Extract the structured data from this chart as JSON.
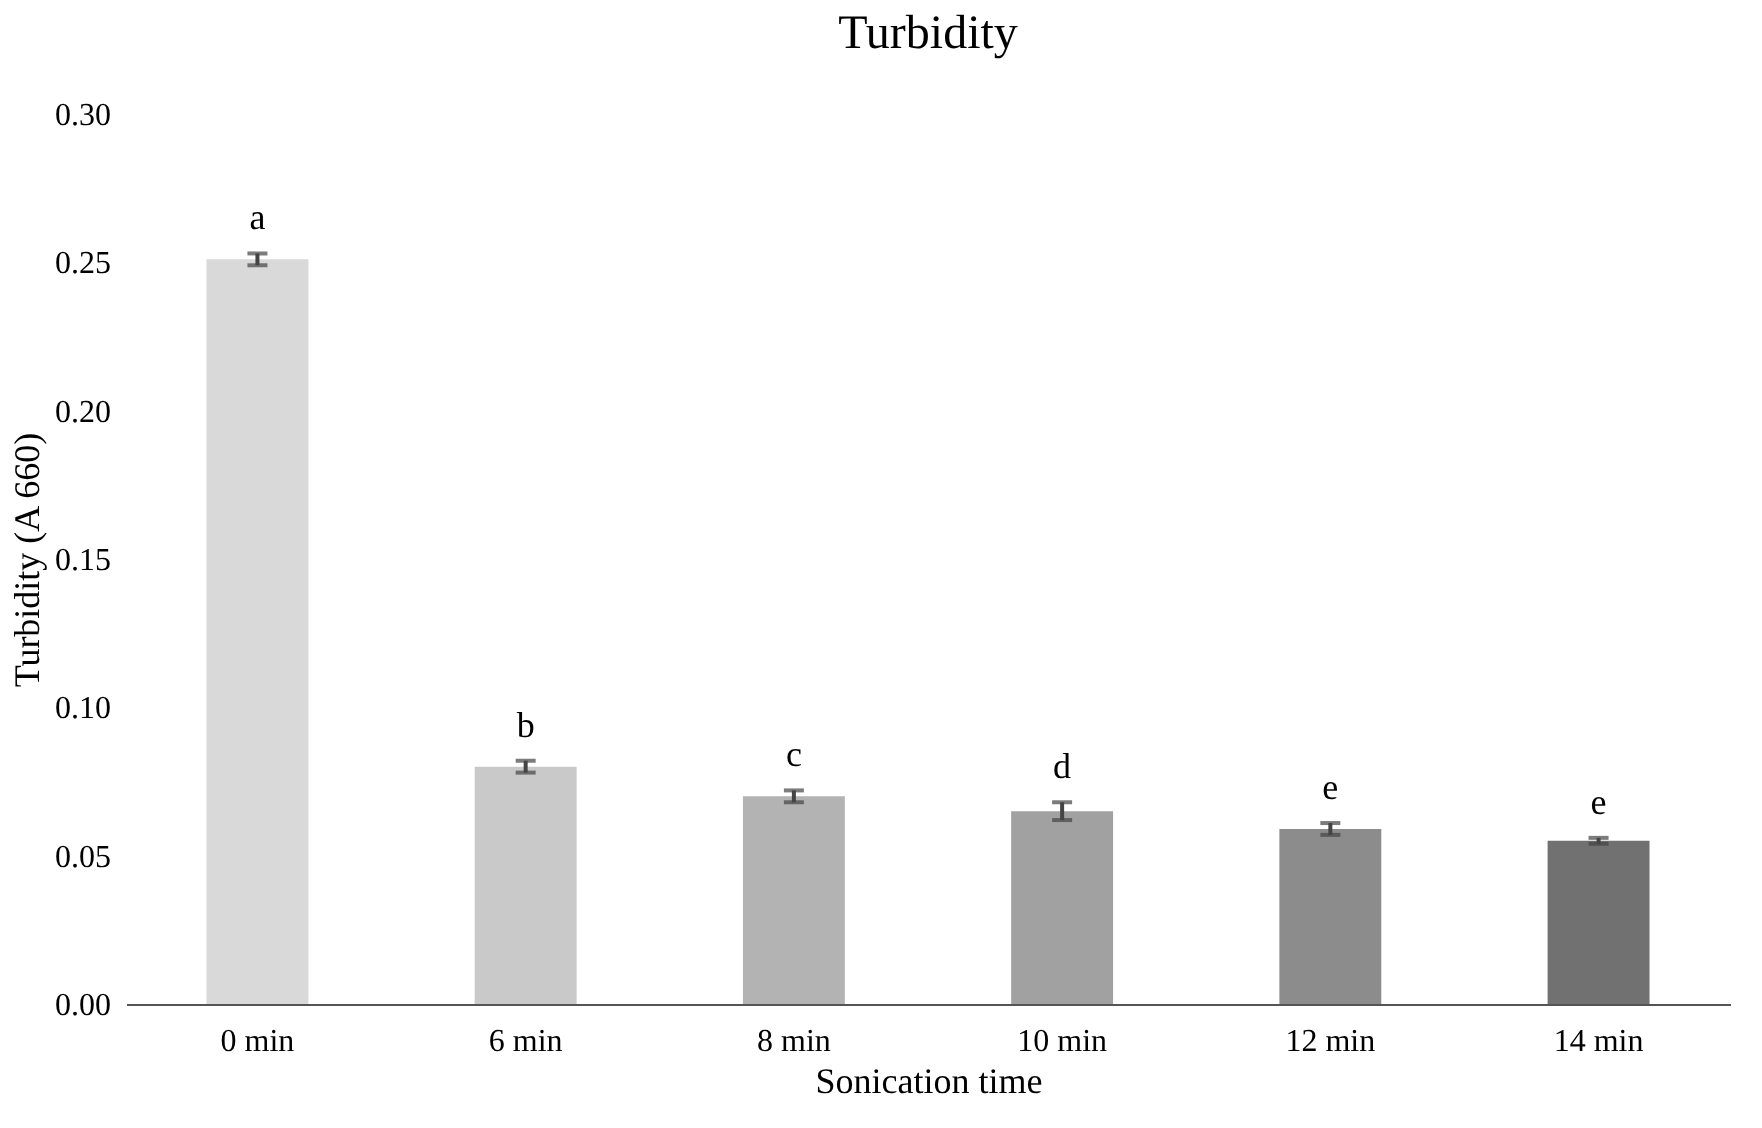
{
  "chart_data": {
    "type": "bar",
    "title": "Turbidity",
    "xlabel": "Sonication time",
    "ylabel": "Turbidity (A 660)",
    "categories": [
      "0 min",
      "6 min",
      "8 min",
      "10 min",
      "12 min",
      "14 min"
    ],
    "values": [
      0.251,
      0.08,
      0.07,
      0.065,
      0.059,
      0.055
    ],
    "errors": [
      0.002,
      0.002,
      0.002,
      0.003,
      0.002,
      0.001
    ],
    "colors": [
      "#d9d9d9",
      "#c9c9c9",
      "#b3b3b3",
      "#a1a1a1",
      "#8c8c8c",
      "#717171"
    ],
    "ylim": [
      0,
      0.3
    ],
    "yticks": [
      {
        "value": 0,
        "label": "0.00"
      },
      {
        "value": 0.05,
        "label": "0.05"
      },
      {
        "value": 0.1,
        "label": "0.10"
      },
      {
        "value": 0.15,
        "label": "0.15"
      },
      {
        "value": 0.2,
        "label": "0.20"
      },
      {
        "value": 0.25,
        "label": "0.25"
      },
      {
        "value": 0.3,
        "label": "0.30"
      }
    ],
    "grid": false,
    "legend": false,
    "annotations": [
      {
        "text": "a",
        "x": "0 min",
        "y": 0.253
      },
      {
        "text": "b",
        "x": "6 min",
        "y": 0.082
      },
      {
        "text": "c",
        "x": "8 min",
        "y": 0.072
      },
      {
        "text": "d",
        "x": "10 min",
        "y": 0.068
      },
      {
        "text": "e",
        "x": "12 min",
        "y": 0.061
      },
      {
        "text": "e",
        "x": "14 min",
        "y": 0.056
      }
    ]
  }
}
